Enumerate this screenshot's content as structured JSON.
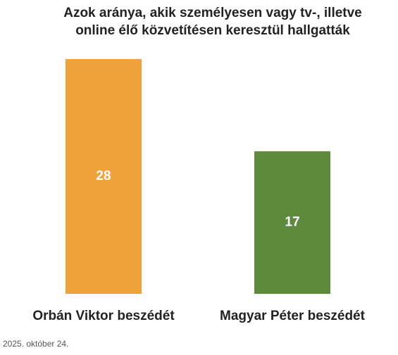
{
  "chart_data": {
    "type": "bar",
    "title": "Azok aránya, akik személyesen vagy tv-, illetve online élő közvetítésen keresztül hallgatták",
    "categories": [
      "Orbán Viktor beszédét",
      "Magyar Péter beszédét"
    ],
    "values": [
      28,
      17
    ],
    "colors": [
      "#f0a23c",
      "#5e8a3e"
    ],
    "note": "2025. október 24."
  }
}
